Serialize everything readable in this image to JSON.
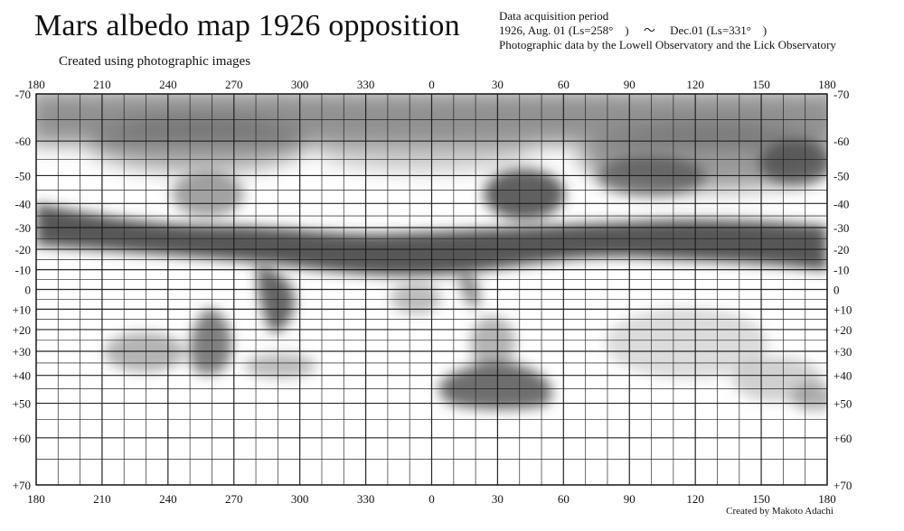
{
  "header": {
    "title": "Mars albedo map 1926 opposition",
    "subtitle": "Created using photographic images",
    "info_heading": "Data acquisition period",
    "info_period": "1926, Aug. 01 (Ls=258°　) 　～　 Dec.01 (Ls=331°　)",
    "info_source": "Photographic data by the Lowell Observatory and the Lick Observatory"
  },
  "footer": {
    "credit": "Created by Makoto Adachi"
  },
  "map": {
    "longitude_labels": [
      "180",
      "210",
      "240",
      "270",
      "300",
      "330",
      "0",
      "30",
      "60",
      "90",
      "120",
      "150",
      "180"
    ],
    "latitude_labels": [
      "-70",
      "-60",
      "-50",
      "-40",
      "-30",
      "-20",
      "-10",
      "0",
      "+10",
      "+20",
      "+30",
      "+40",
      "+50",
      "+60",
      "+70"
    ],
    "latitude_values": [
      -70,
      -60,
      -50,
      -40,
      -30,
      -20,
      -10,
      0,
      10,
      20,
      30,
      40,
      50,
      60,
      70
    ],
    "longitude_values": [
      180,
      210,
      240,
      270,
      300,
      330,
      0,
      30,
      60,
      90,
      120,
      150,
      180
    ],
    "grid_line_color": "#1a1a1a",
    "dark_shade_color": "#3a3a3a",
    "background_color": "#ffffff"
  }
}
